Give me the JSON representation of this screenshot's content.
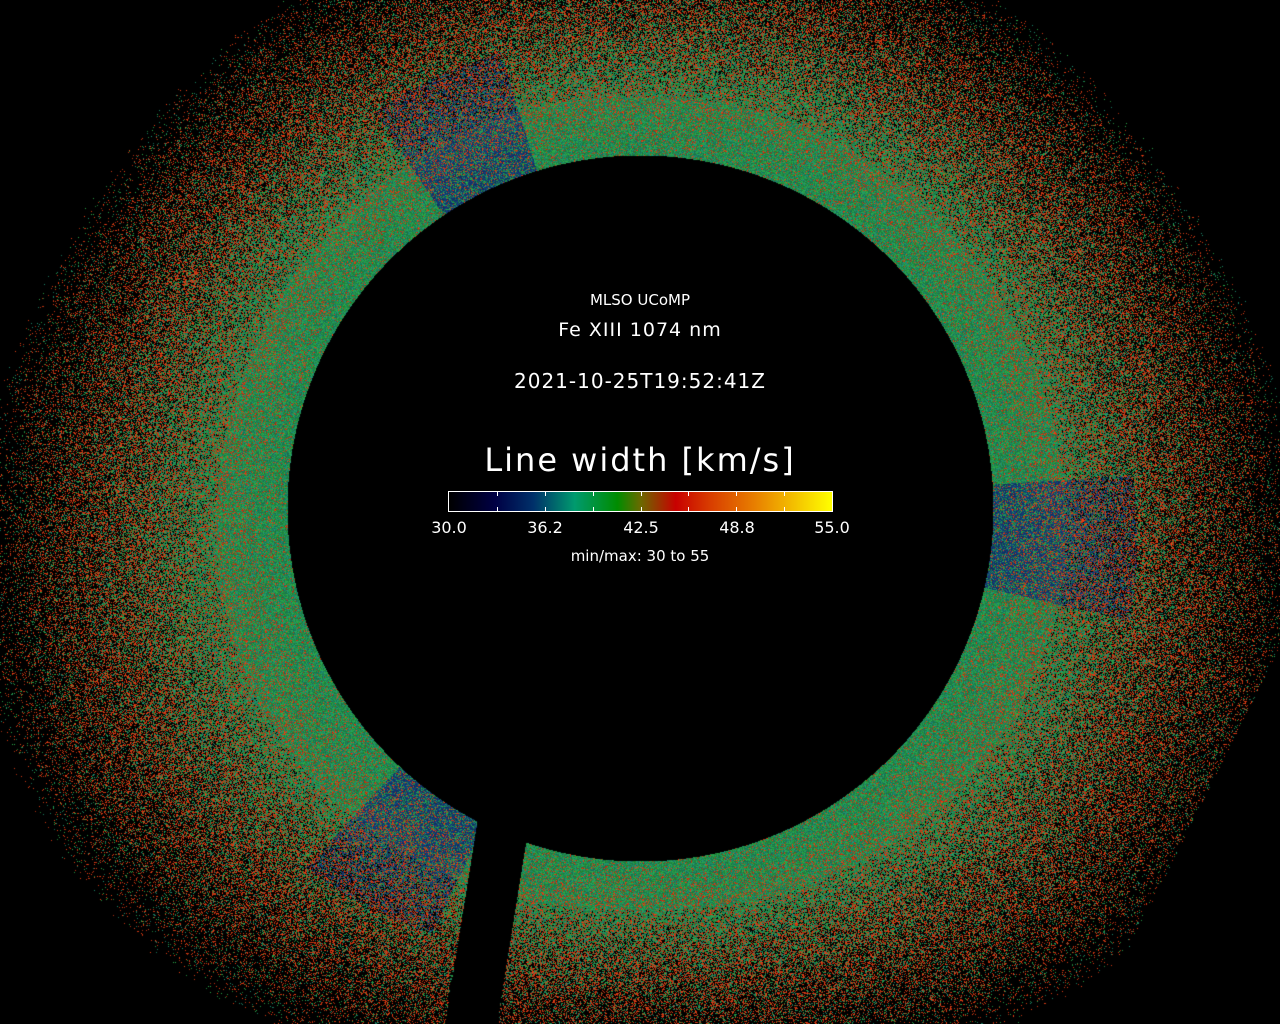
{
  "header": {
    "observatory": "MLSO UCoMP",
    "line": "Fe XIII 1074 nm",
    "timestamp": "2021-10-25T19:52:41Z"
  },
  "colorbar": {
    "label": "Line width [km/s]",
    "min": 30.0,
    "max": 55.0,
    "tick_labels": [
      "30.0",
      "36.2",
      "42.5",
      "48.8",
      "55.0"
    ],
    "minmax_text": "min/max: 30 to 55",
    "colormap_stops": [
      {
        "value": 30.0,
        "color": "#000000"
      },
      {
        "value": 33.0,
        "color": "#000044"
      },
      {
        "value": 35.5,
        "color": "#00306a"
      },
      {
        "value": 38.2,
        "color": "#009a6e"
      },
      {
        "value": 41.0,
        "color": "#008c00"
      },
      {
        "value": 42.5,
        "color": "#6a6a00"
      },
      {
        "value": 44.8,
        "color": "#c80000"
      },
      {
        "value": 47.0,
        "color": "#d83c00"
      },
      {
        "value": 50.0,
        "color": "#e88000"
      },
      {
        "value": 55.0,
        "color": "#ffff00"
      }
    ]
  },
  "image": {
    "description_colors": {
      "green": "#28a046",
      "teal": "#1e8c6e",
      "blue": "#143c78",
      "red": "#dc3c14"
    }
  }
}
